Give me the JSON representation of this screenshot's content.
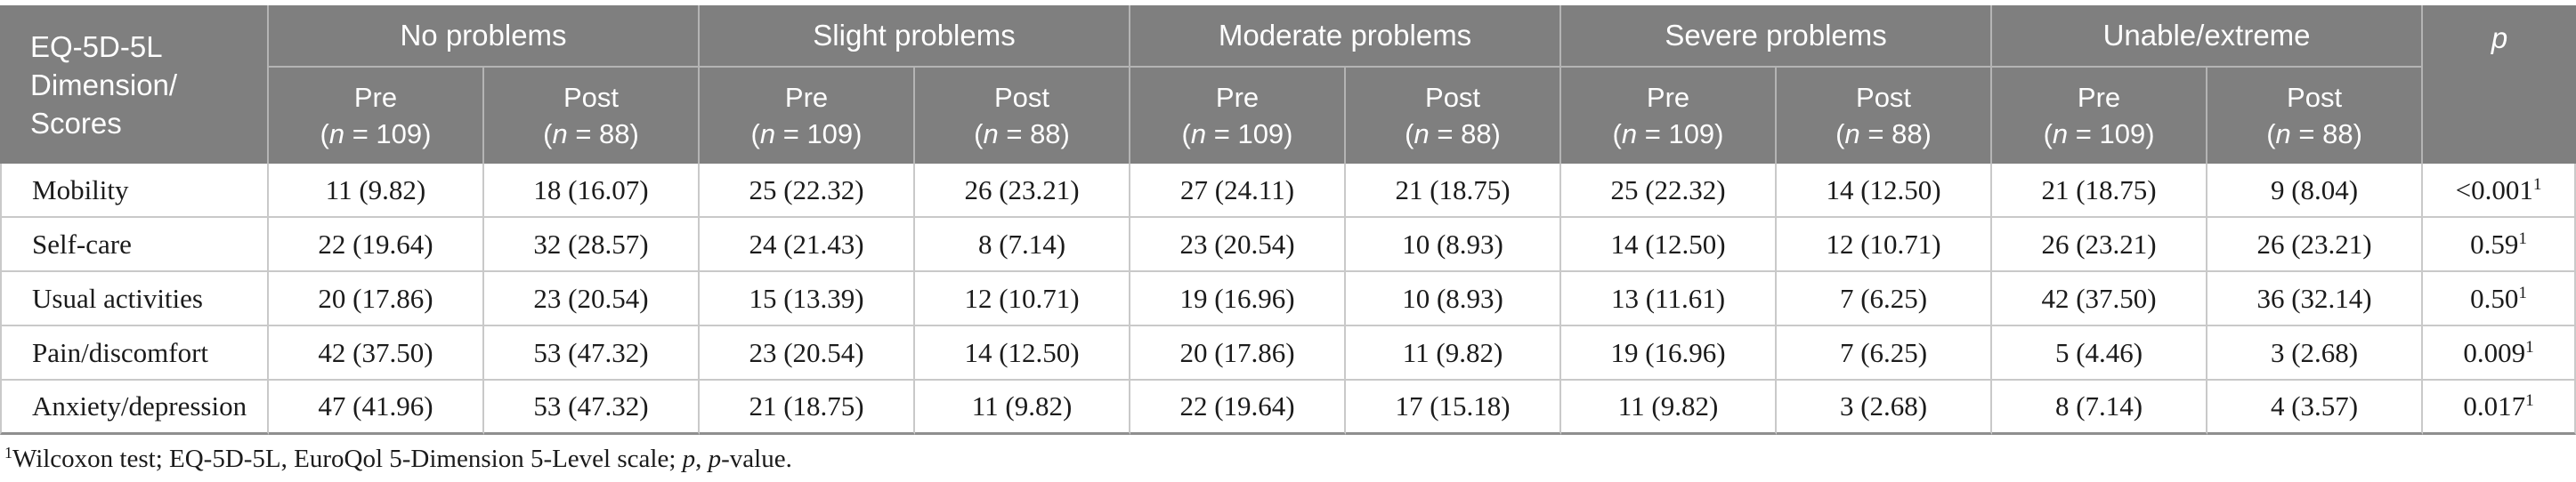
{
  "colors": {
    "header_bg": "#7f7f7f",
    "header_text": "#ffffff",
    "header_divider": "#b4b4b4",
    "body_border": "#c9c9c9",
    "table_bottom_border": "#8f8f8f",
    "body_text": "#1b1b1b"
  },
  "table": {
    "dimension_header_lines": [
      "EQ-5D-5L",
      "Dimension/",
      "Scores"
    ],
    "groups": [
      {
        "label": "No problems"
      },
      {
        "label": "Slight problems"
      },
      {
        "label": "Moderate problems"
      },
      {
        "label": "Severe problems"
      },
      {
        "label": "Unable/extreme"
      }
    ],
    "subcolumns": [
      {
        "period": "Pre",
        "n": "109"
      },
      {
        "period": "Post",
        "n": "88"
      }
    ],
    "p_header": "p",
    "rows": [
      {
        "dimension": "Mobility",
        "values": [
          "11 (9.82)",
          "18 (16.07)",
          "25 (22.32)",
          "26 (23.21)",
          "27 (24.11)",
          "21 (18.75)",
          "25 (22.32)",
          "14 (12.50)",
          "21 (18.75)",
          "9 (8.04)"
        ],
        "p": "<0.001",
        "p_sup": "1"
      },
      {
        "dimension": "Self-care",
        "values": [
          "22 (19.64)",
          "32 (28.57)",
          "24 (21.43)",
          "8 (7.14)",
          "23 (20.54)",
          "10 (8.93)",
          "14 (12.50)",
          "12 (10.71)",
          "26 (23.21)",
          "26 (23.21)"
        ],
        "p": "0.59",
        "p_sup": "1"
      },
      {
        "dimension": "Usual activities",
        "values": [
          "20 (17.86)",
          "23 (20.54)",
          "15 (13.39)",
          "12 (10.71)",
          "19 (16.96)",
          "10 (8.93)",
          "13 (11.61)",
          "7 (6.25)",
          "42 (37.50)",
          "36 (32.14)"
        ],
        "p": "0.50",
        "p_sup": "1"
      },
      {
        "dimension": "Pain/discomfort",
        "values": [
          "42 (37.50)",
          "53 (47.32)",
          "23 (20.54)",
          "14 (12.50)",
          "20 (17.86)",
          "11 (9.82)",
          "19 (16.96)",
          "7 (6.25)",
          "5 (4.46)",
          "3 (2.68)"
        ],
        "p": "0.009",
        "p_sup": "1"
      },
      {
        "dimension": "Anxiety/depression",
        "values": [
          "47 (41.96)",
          "53 (47.32)",
          "21 (18.75)",
          "11 (9.82)",
          "22 (19.64)",
          "17 (15.18)",
          "11 (9.82)",
          "3 (2.68)",
          "8 (7.14)",
          "4 (3.57)"
        ],
        "p": "0.017",
        "p_sup": "1"
      }
    ]
  },
  "footnote": {
    "sup": "1",
    "segments": [
      {
        "text": "Wilcoxon test; EQ-5D-5L, EuroQol 5-Dimension 5-Level scale; "
      },
      {
        "text": "p",
        "italic": true
      },
      {
        "text": ", "
      },
      {
        "text": "p",
        "italic": true
      },
      {
        "text": "-value."
      }
    ]
  }
}
